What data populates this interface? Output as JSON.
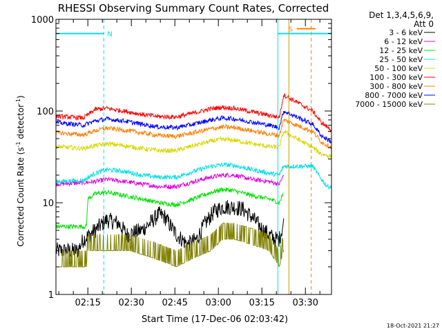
{
  "chart_data": {
    "type": "line",
    "title": "RHESSI Observing Summary Count Rates, Corrected",
    "xlabel": "Start Time (17-Dec-06 02:03:42)",
    "ylabel_main": "Corrected Count Rate (s",
    "ylabel_sup1": "-1",
    "ylabel_mid": " detector",
    "ylabel_sup2": "-1",
    "ylabel_end": ")",
    "y_scale": "log",
    "ylim": [
      1,
      1000
    ],
    "xlim_minutes": [
      2.5,
      97.5
    ],
    "x_tick_labels": [
      "02:15",
      "02:30",
      "02:45",
      "03:00",
      "03:15",
      "03:30"
    ],
    "x_tick_minutes": [
      13.5,
      28.5,
      43.5,
      58.5,
      73.5,
      88.5
    ],
    "y_tick_labels": [
      "1",
      "10",
      "100",
      "1000"
    ],
    "y_tick_values": [
      1,
      10,
      100,
      1000
    ],
    "legend_header_1": "Det 1,3,4,5,6,9,",
    "legend_header_2": "Att 0",
    "legend_placement": "right",
    "series": [
      {
        "name": "3 - 6 keV",
        "color": "#000000",
        "points": [
          [
            2.5,
            3
          ],
          [
            10,
            3
          ],
          [
            12,
            4
          ],
          [
            16,
            5
          ],
          [
            20,
            6.5
          ],
          [
            24,
            6
          ],
          [
            27,
            4.5
          ],
          [
            32,
            5
          ],
          [
            35,
            6
          ],
          [
            38,
            7.5
          ],
          [
            40,
            7
          ],
          [
            44,
            4.5
          ],
          [
            48,
            3.5
          ],
          [
            51,
            4
          ],
          [
            54,
            6
          ],
          [
            57,
            8
          ],
          [
            60,
            9
          ],
          [
            64,
            9
          ],
          [
            67,
            8.5
          ],
          [
            70,
            7
          ],
          [
            74,
            5
          ],
          [
            78,
            4
          ],
          [
            79.5,
            4
          ],
          [
            81,
            6
          ]
        ]
      },
      {
        "name": "6 - 12 keV",
        "color": "#e000e0",
        "points": [
          [
            2.5,
            16
          ],
          [
            12,
            16.5
          ],
          [
            16,
            17
          ],
          [
            20,
            18
          ],
          [
            26,
            17
          ],
          [
            32,
            16
          ],
          [
            38,
            15
          ],
          [
            44,
            15
          ],
          [
            50,
            17
          ],
          [
            56,
            19
          ],
          [
            60,
            20
          ],
          [
            64,
            20
          ],
          [
            70,
            18
          ],
          [
            76,
            17
          ],
          [
            79.5,
            16
          ],
          [
            81,
            20
          ]
        ]
      },
      {
        "name": "12 - 25 keV",
        "color": "#00e000",
        "points": [
          [
            2.5,
            5.5
          ],
          [
            13,
            5.5
          ],
          [
            13.5,
            11
          ],
          [
            16,
            12.5
          ],
          [
            20,
            13
          ],
          [
            26,
            12
          ],
          [
            32,
            11
          ],
          [
            38,
            10
          ],
          [
            44,
            9.5
          ],
          [
            50,
            11
          ],
          [
            56,
            13
          ],
          [
            60,
            14
          ],
          [
            64,
            13.5
          ],
          [
            70,
            12
          ],
          [
            76,
            11
          ],
          [
            79.5,
            10
          ],
          [
            81,
            13
          ]
        ]
      },
      {
        "name": "25 - 50 keV",
        "color": "#00e0e0",
        "points": [
          [
            2.5,
            17
          ],
          [
            12,
            17.5
          ],
          [
            16,
            21
          ],
          [
            20,
            23
          ],
          [
            26,
            22
          ],
          [
            32,
            20
          ],
          [
            38,
            19
          ],
          [
            44,
            19
          ],
          [
            50,
            22
          ],
          [
            56,
            25
          ],
          [
            60,
            26
          ],
          [
            64,
            25.5
          ],
          [
            70,
            23
          ],
          [
            76,
            21
          ],
          [
            79.5,
            20
          ],
          [
            81,
            25
          ],
          [
            91,
            25
          ],
          [
            93,
            20
          ],
          [
            96,
            15
          ],
          [
            97.5,
            15
          ]
        ]
      },
      {
        "name": "50 - 100 keV",
        "color": "#d8d800",
        "points": [
          [
            2.5,
            41
          ],
          [
            12,
            39
          ],
          [
            16,
            42
          ],
          [
            20,
            44
          ],
          [
            26,
            42
          ],
          [
            32,
            39
          ],
          [
            38,
            37
          ],
          [
            44,
            37
          ],
          [
            50,
            42
          ],
          [
            56,
            47
          ],
          [
            60,
            49
          ],
          [
            64,
            48
          ],
          [
            70,
            44
          ],
          [
            76,
            41
          ],
          [
            79.5,
            40
          ],
          [
            81,
            60
          ],
          [
            91,
            40
          ],
          [
            94,
            34
          ],
          [
            97.5,
            32
          ]
        ]
      },
      {
        "name": "100 - 300 keV",
        "color": "#ff0000",
        "points": [
          [
            2.5,
            88
          ],
          [
            12,
            84
          ],
          [
            16,
            104
          ],
          [
            20,
            107
          ],
          [
            26,
            100
          ],
          [
            32,
            92
          ],
          [
            38,
            87
          ],
          [
            44,
            86
          ],
          [
            50,
            95
          ],
          [
            56,
            106
          ],
          [
            60,
            110
          ],
          [
            64,
            107
          ],
          [
            70,
            98
          ],
          [
            76,
            90
          ],
          [
            79.5,
            85
          ],
          [
            81,
            150
          ],
          [
            91,
            100
          ],
          [
            94,
            75
          ],
          [
            97.5,
            62
          ]
        ]
      },
      {
        "name": "300 - 800 keV",
        "color": "#ff8000",
        "points": [
          [
            2.5,
            58
          ],
          [
            12,
            55
          ],
          [
            16,
            61
          ],
          [
            20,
            65
          ],
          [
            26,
            62
          ],
          [
            32,
            58
          ],
          [
            38,
            54
          ],
          [
            44,
            53
          ],
          [
            50,
            58
          ],
          [
            56,
            64
          ],
          [
            60,
            67
          ],
          [
            64,
            66
          ],
          [
            70,
            61
          ],
          [
            76,
            56
          ],
          [
            79.5,
            54
          ],
          [
            81,
            80
          ],
          [
            91,
            60
          ],
          [
            94,
            46
          ],
          [
            97.5,
            40
          ]
        ]
      },
      {
        "name": "800 - 7000 keV",
        "color": "#0000ff",
        "points": [
          [
            2.5,
            75
          ],
          [
            12,
            70
          ],
          [
            16,
            78
          ],
          [
            20,
            82
          ],
          [
            26,
            78
          ],
          [
            32,
            72
          ],
          [
            38,
            67
          ],
          [
            44,
            66
          ],
          [
            50,
            72
          ],
          [
            56,
            80
          ],
          [
            60,
            84
          ],
          [
            64,
            82
          ],
          [
            70,
            76
          ],
          [
            76,
            70
          ],
          [
            79.5,
            66
          ],
          [
            81,
            100
          ],
          [
            91,
            72
          ],
          [
            94,
            54
          ],
          [
            97.5,
            46
          ]
        ]
      },
      {
        "name": "7000 - 15000 keV",
        "color": "#808000",
        "points": [
          [
            2.5,
            2
          ],
          [
            13,
            2
          ],
          [
            13.5,
            3
          ],
          [
            20,
            3
          ],
          [
            28,
            3
          ],
          [
            36,
            2.5
          ],
          [
            44,
            2
          ],
          [
            50,
            2.5
          ],
          [
            56,
            3
          ],
          [
            60,
            4
          ],
          [
            64,
            4
          ],
          [
            70,
            3.5
          ],
          [
            76,
            3
          ],
          [
            79.5,
            2
          ],
          [
            81,
            3
          ]
        ]
      }
    ],
    "flag_bars": [
      {
        "label": "N",
        "color": "#00e0e0",
        "x_start": 2.5,
        "x_end": 19.0,
        "y": 700,
        "dashed_end": true
      },
      {
        "label": "",
        "color": "#00e0e0",
        "x_start": 79.0,
        "x_end": 97.5,
        "y": 700
      },
      {
        "label": "S",
        "color": "#ff8000",
        "x_start": 85.5,
        "x_end": 92.0,
        "y": 790
      }
    ],
    "vertical_lines": [
      {
        "x": 19.0,
        "color": "#00e0e0",
        "dashed": true
      },
      {
        "x": 79.0,
        "color": "#00e0e0",
        "dashed": false
      },
      {
        "x": 82.8,
        "color": "#c0a000",
        "dashed": false
      },
      {
        "x": 90.5,
        "color": "#ff8000",
        "dashed": true
      },
      {
        "x": 97.5,
        "color": "#00e0e0",
        "dashed": true
      }
    ],
    "timestamp": "18-Oct-2021 21:27"
  }
}
